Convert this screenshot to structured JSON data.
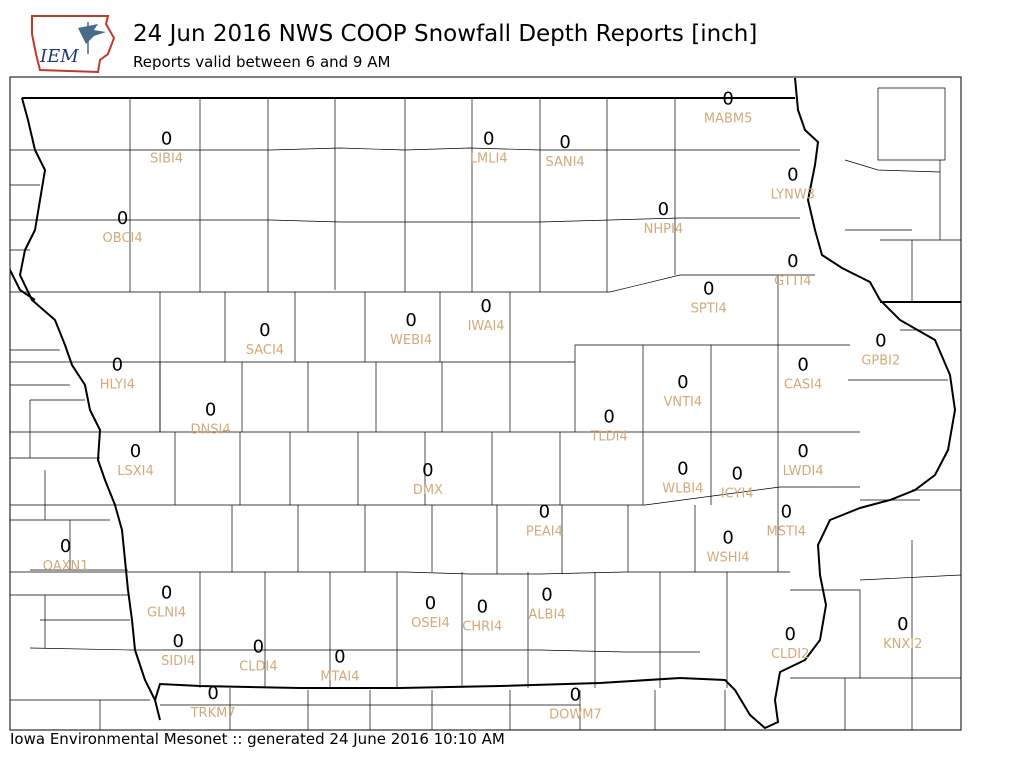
{
  "header": {
    "logo_text": "IEM",
    "title": "24 Jun 2016 NWS COOP Snowfall Depth Reports [inch]",
    "subtitle": "Reports valid between 6 and 9 AM"
  },
  "footer": {
    "text": "Iowa Environmental Mesonet :: generated 24 June 2016 10:10 AM"
  },
  "colors": {
    "station_label": "#d2aa7a",
    "value_label": "#000000",
    "county_line": "#000000"
  },
  "stations": [
    {
      "id": "SIBI4",
      "value": "0",
      "lon": -95.74,
      "lat": 43.29
    },
    {
      "id": "LMLI4",
      "value": "0",
      "lon": -93.25,
      "lat": 43.29
    },
    {
      "id": "SANI4",
      "value": "0",
      "lon": -92.66,
      "lat": 43.27
    },
    {
      "id": "MABM5",
      "value": "0",
      "lon": -91.4,
      "lat": 43.52
    },
    {
      "id": "LYNW3",
      "value": "0",
      "lon": -90.9,
      "lat": 43.08
    },
    {
      "id": "OBCI4",
      "value": "0",
      "lon": -96.08,
      "lat": 42.83
    },
    {
      "id": "NHPI4",
      "value": "0",
      "lon": -91.9,
      "lat": 42.88
    },
    {
      "id": "GTTI4",
      "value": "0",
      "lon": -90.9,
      "lat": 42.58
    },
    {
      "id": "SPTI4",
      "value": "0",
      "lon": -91.55,
      "lat": 42.42
    },
    {
      "id": "SACI4",
      "value": "0",
      "lon": -94.98,
      "lat": 42.18
    },
    {
      "id": "WEBI4",
      "value": "0",
      "lon": -93.85,
      "lat": 42.24
    },
    {
      "id": "IWAI4",
      "value": "0",
      "lon": -93.27,
      "lat": 42.32
    },
    {
      "id": "GPBI2",
      "value": "0",
      "lon": -90.22,
      "lat": 42.12
    },
    {
      "id": "HLYI4",
      "value": "0",
      "lon": -96.12,
      "lat": 41.98
    },
    {
      "id": "CASI4",
      "value": "0",
      "lon": -90.82,
      "lat": 41.98
    },
    {
      "id": "VNTI4",
      "value": "0",
      "lon": -91.75,
      "lat": 41.88
    },
    {
      "id": "DNSI4",
      "value": "0",
      "lon": -95.4,
      "lat": 41.72
    },
    {
      "id": "TLDI4",
      "value": "0",
      "lon": -92.32,
      "lat": 41.68
    },
    {
      "id": "LSXI4",
      "value": "0",
      "lon": -95.98,
      "lat": 41.48
    },
    {
      "id": "DMX",
      "value": "0",
      "lon": -93.72,
      "lat": 41.37
    },
    {
      "id": "LWDI4",
      "value": "0",
      "lon": -90.82,
      "lat": 41.48
    },
    {
      "id": "WLBI4",
      "value": "0",
      "lon": -91.75,
      "lat": 41.38
    },
    {
      "id": "ICYI4",
      "value": "0",
      "lon": -91.33,
      "lat": 41.35
    },
    {
      "id": "PEAI4",
      "value": "0",
      "lon": -92.82,
      "lat": 41.13
    },
    {
      "id": "MSTI4",
      "value": "0",
      "lon": -90.95,
      "lat": 41.13
    },
    {
      "id": "OAXN1",
      "value": "0",
      "lon": -96.52,
      "lat": 40.93
    },
    {
      "id": "WSHI4",
      "value": "0",
      "lon": -91.4,
      "lat": 40.98
    },
    {
      "id": "GLNI4",
      "value": "0",
      "lon": -95.74,
      "lat": 40.66
    },
    {
      "id": "OSEI4",
      "value": "0",
      "lon": -93.7,
      "lat": 40.6
    },
    {
      "id": "CHRI4",
      "value": "0",
      "lon": -93.3,
      "lat": 40.58
    },
    {
      "id": "ALBI4",
      "value": "0",
      "lon": -92.8,
      "lat": 40.65
    },
    {
      "id": "KNXI2",
      "value": "0",
      "lon": -90.05,
      "lat": 40.48
    },
    {
      "id": "CLDI2",
      "value": "0",
      "lon": -90.92,
      "lat": 40.42
    },
    {
      "id": "SIDI4",
      "value": "0",
      "lon": -95.65,
      "lat": 40.38
    },
    {
      "id": "CLDI4",
      "value": "0",
      "lon": -95.03,
      "lat": 40.35
    },
    {
      "id": "MTAI4",
      "value": "0",
      "lon": -94.4,
      "lat": 40.29
    },
    {
      "id": "DOWM7",
      "value": "0",
      "lon": -92.58,
      "lat": 40.07
    },
    {
      "id": "TRKM7",
      "value": "0",
      "lon": -95.38,
      "lat": 40.08
    }
  ]
}
